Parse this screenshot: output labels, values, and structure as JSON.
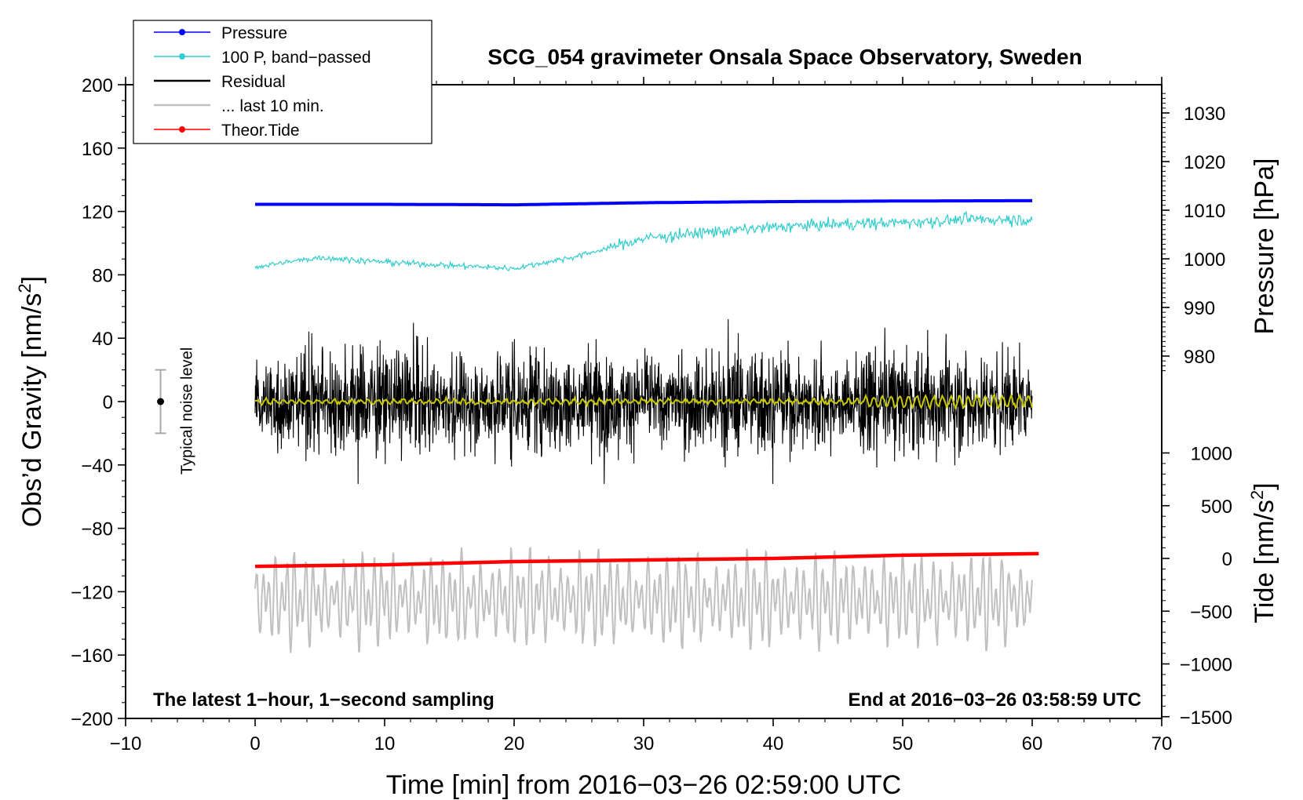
{
  "chart_data": {
    "type": "line",
    "title": "SCG_054 gravimeter Onsala Space Observatory, Sweden",
    "xlabel": "Time [min] from 2016−03−26 02:59:00 UTC",
    "ylabel_left": "Obs’d Gravity [nm/s",
    "ylabel_left_sup": "2",
    "ylabel_left_close": "]",
    "ylabel_right_pressure": "Pressure [hPa]",
    "ylabel_right_tide": "Tide [nm/s",
    "ylabel_right_tide_sup": "2",
    "ylabel_right_tide_close": "]",
    "xlim": [
      -10,
      70
    ],
    "ylim_left": [
      -200,
      200
    ],
    "x_ticks": [
      -10,
      0,
      10,
      20,
      30,
      40,
      50,
      60,
      70
    ],
    "x_tick_labels": [
      "−10",
      "0",
      "10",
      "20",
      "30",
      "40",
      "50",
      "60",
      "70"
    ],
    "y_ticks_left": [
      200,
      160,
      120,
      80,
      40,
      0,
      -40,
      -80,
      -120,
      -160,
      -200
    ],
    "y_tick_labels_left": [
      "200",
      "160",
      "120",
      "80",
      "40",
      "0",
      "−40",
      "−80",
      "−120",
      "−160",
      "−200"
    ],
    "pressure_ticks": [
      1030,
      1020,
      1010,
      1000,
      990,
      980
    ],
    "pressure_tick_labels": [
      "1030",
      "1020",
      "1010",
      "1000",
      "990",
      "980"
    ],
    "tide_ticks": [
      1000,
      500,
      0,
      -500,
      -1000,
      -1500
    ],
    "tide_tick_labels": [
      "1000",
      "500",
      "0",
      "−500",
      "−1000",
      "−1500"
    ],
    "series": [
      {
        "name": "Pressure",
        "color": "#0000ff",
        "x": [
          0,
          10,
          20,
          30,
          40,
          50,
          60
        ],
        "values": [
          124.5,
          124.5,
          124.2,
          125.5,
          126.2,
          126.6,
          126.8
        ]
      },
      {
        "name": "100 P, band−passed",
        "color": "#33cccc",
        "x": [
          0,
          5,
          10,
          15,
          20,
          25,
          30,
          35,
          40,
          45,
          50,
          55,
          60
        ],
        "values": [
          85,
          91,
          88,
          86,
          84,
          92,
          103,
          107,
          110,
          112,
          113,
          115,
          115
        ]
      },
      {
        "name": "Residual",
        "color": "#000000",
        "x": [
          0,
          60
        ],
        "values": [
          0,
          0
        ],
        "amplitude_range": [
          -52,
          52
        ]
      },
      {
        "name": "... last 10 min.",
        "color": "#c0c0c0",
        "x": [
          0,
          60
        ],
        "values": [
          -125,
          -125
        ],
        "amplitude_range": [
          -168,
          -90
        ]
      },
      {
        "name": "Theor.Tide",
        "color": "#ff0000",
        "x": [
          0,
          10,
          20,
          30,
          40,
          50,
          60.5
        ],
        "values": [
          -104,
          -103,
          -101,
          -100,
          -99,
          -97,
          -96
        ]
      }
    ],
    "noise_indicator": {
      "label": "Typical noise level",
      "center": 0,
      "range": [
        -20,
        20
      ]
    },
    "note_left": "The latest 1−hour, 1−second sampling",
    "note_right": "End at 2016−03−26 03:58:59 UTC",
    "legend_position": "top-left"
  }
}
